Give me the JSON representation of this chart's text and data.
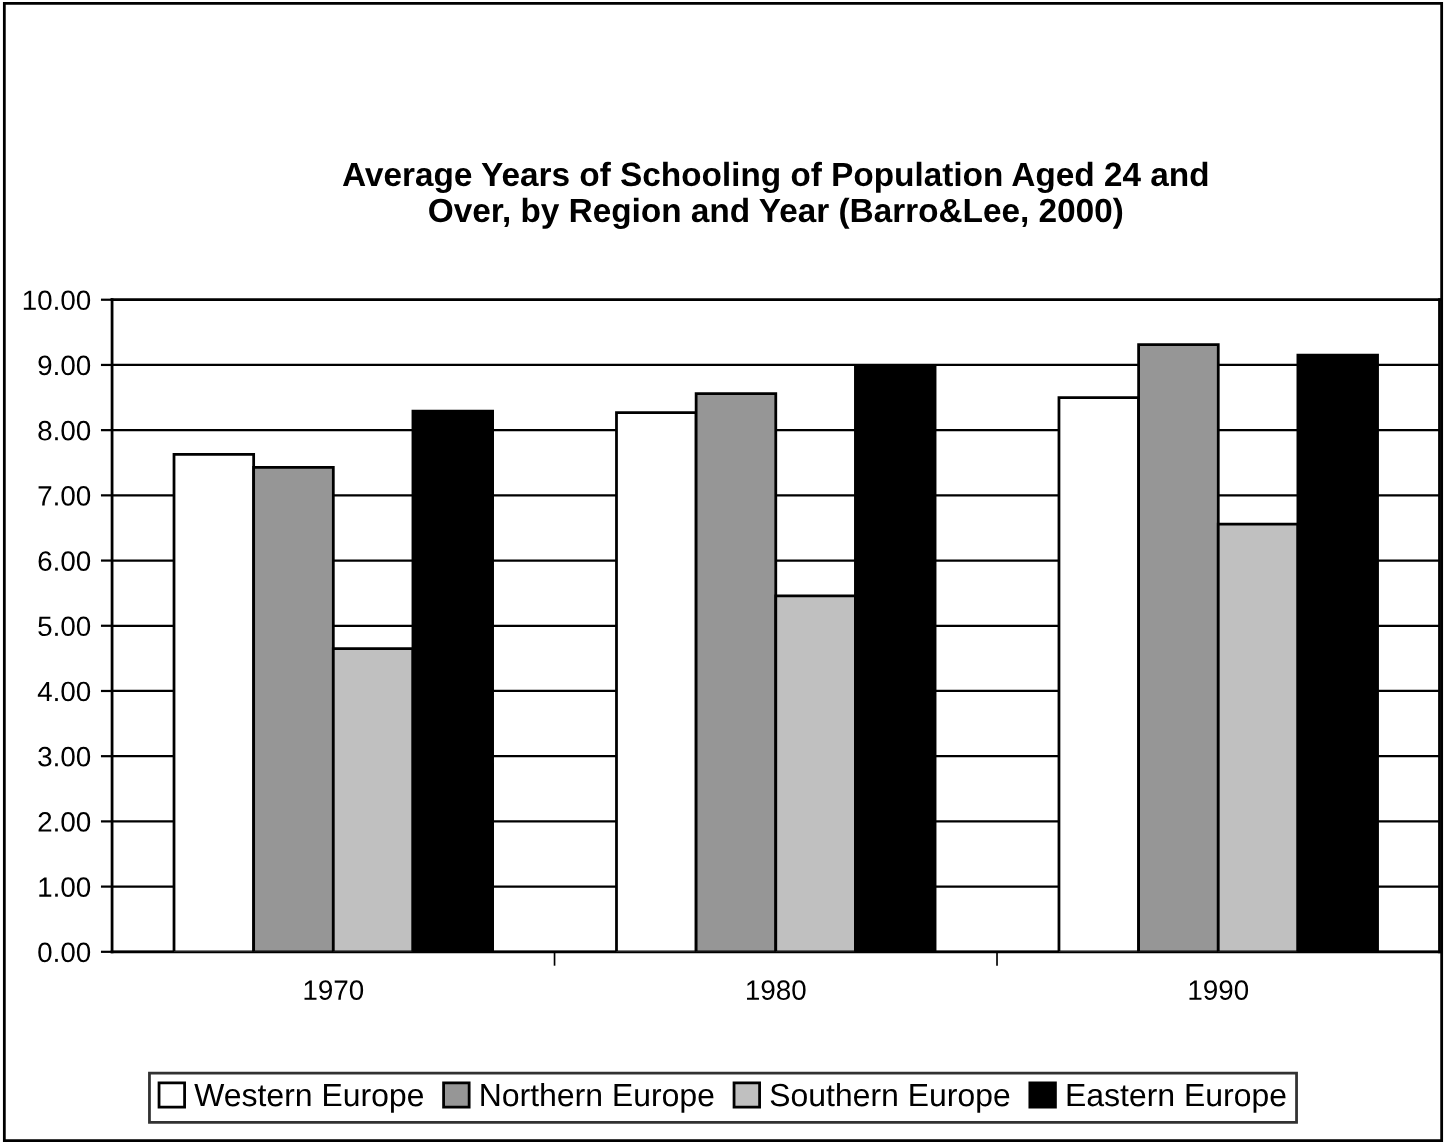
{
  "chart_data": {
    "type": "bar",
    "title": "Average Years of Schooling of Population Aged 24 and\nOver, by Region and Year (Barro&Lee, 2000)",
    "categories": [
      "1970",
      "1980",
      "1990"
    ],
    "series": [
      {
        "name": "Western Europe",
        "color": "#ffffff",
        "values": [
          7.63,
          8.27,
          8.5
        ]
      },
      {
        "name": "Northern Europe",
        "color": "#969696",
        "values": [
          7.43,
          8.56,
          9.31
        ]
      },
      {
        "name": "Southern Europe",
        "color": "#c0c0c0",
        "values": [
          4.65,
          5.46,
          6.56
        ]
      },
      {
        "name": "Eastern Europe",
        "color": "#000000",
        "values": [
          8.29,
          8.99,
          9.15
        ]
      }
    ],
    "ylim": [
      0,
      10
    ],
    "yticks": [
      {
        "value": 0,
        "label": "0.00"
      },
      {
        "value": 1,
        "label": "1.00"
      },
      {
        "value": 2,
        "label": "2.00"
      },
      {
        "value": 3,
        "label": "3.00"
      },
      {
        "value": 4,
        "label": "4.00"
      },
      {
        "value": 5,
        "label": "5.00"
      },
      {
        "value": 6,
        "label": "6.00"
      },
      {
        "value": 7,
        "label": "7.00"
      },
      {
        "value": 8,
        "label": "8.00"
      },
      {
        "value": 9,
        "label": "9.00"
      },
      {
        "value": 10,
        "label": "10.00"
      }
    ],
    "grid": "y",
    "legend": "bottom"
  }
}
